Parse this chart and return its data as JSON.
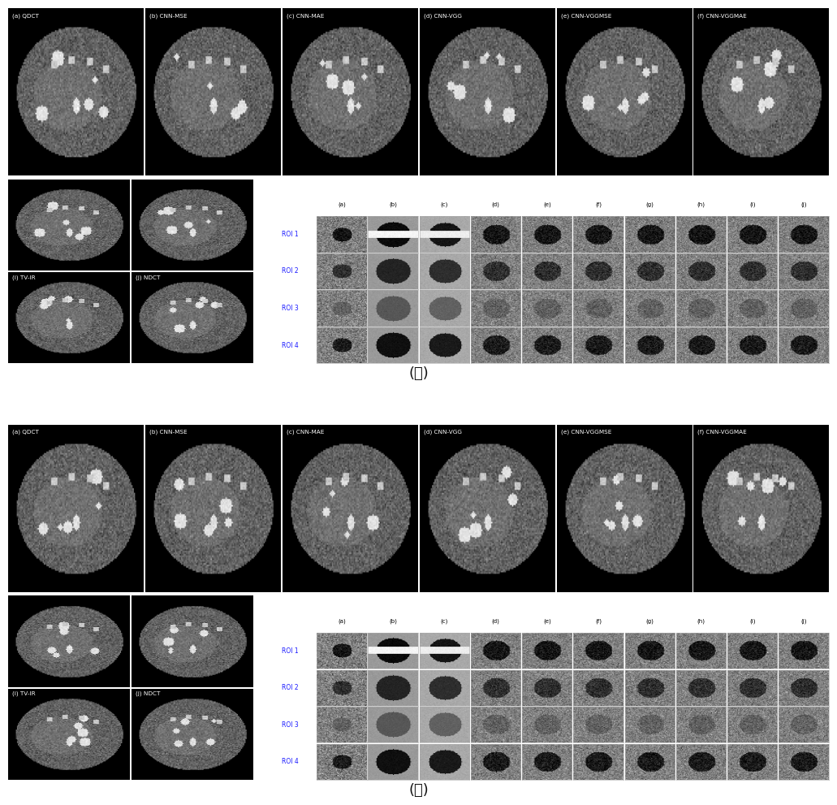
{
  "title_a": "(ａ)",
  "title_b": "(ｂ)",
  "top_labels": [
    "(a) QDCT",
    "(b) CNN-MSE",
    "(c) CNN-MAE",
    "(d) CNN-VGG",
    "(e) CNN-VGGMSE",
    "(f) CNN-VGGMAE"
  ],
  "bottom_left_labels_row1": [
    "",
    ""
  ],
  "bottom_left_labels_row2": [
    "(i) TV-IR",
    "(j) NDCT"
  ],
  "roi_labels": [
    "ROI 1",
    "ROI 2",
    "ROI 3",
    "ROI 4"
  ],
  "col_labels": [
    "(a)",
    "(b)",
    "(c)",
    "(d)",
    "(e)",
    "(f)",
    "(g)",
    "(h)",
    "(i)",
    "(j)"
  ],
  "fig_bg": "#ffffff",
  "roi_label_color": "#1a1aff",
  "col_label_color": "#000000",
  "figsize": [
    10.31,
    9.91
  ]
}
